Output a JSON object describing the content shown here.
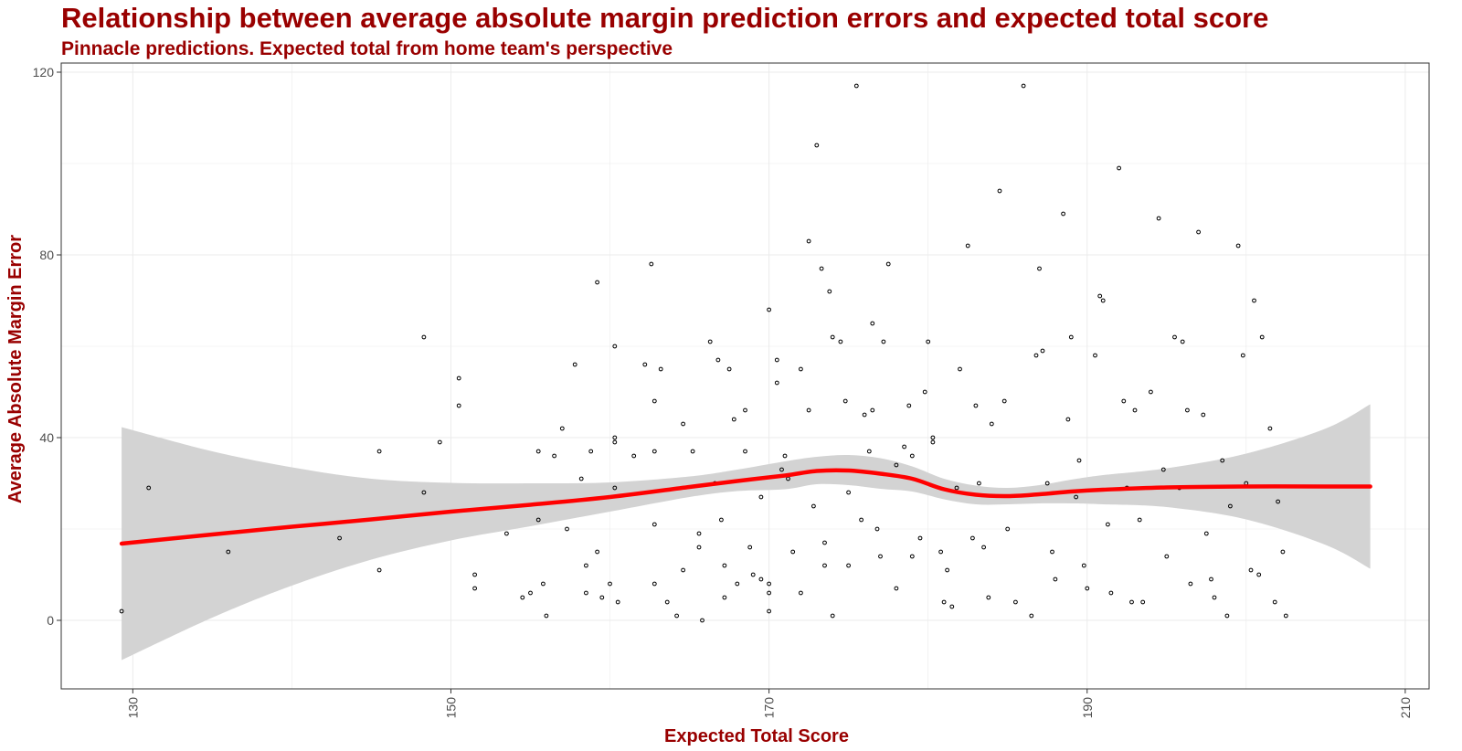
{
  "chart_data": {
    "type": "scatter",
    "title": "Relationship between average absolute margin prediction errors and expected total score",
    "subtitle": "Pinnacle predictions. Expected total from home team's perspective",
    "xlabel": "Expected Total Score",
    "ylabel": "Average Absolute Margin Error",
    "xlim": [
      125.5,
      211.5
    ],
    "ylim": [
      -15,
      122
    ],
    "x_ticks": [
      130,
      150,
      170,
      190,
      210
    ],
    "y_ticks": [
      0,
      40,
      80,
      120
    ],
    "grid": true,
    "colors": {
      "title": "#990000",
      "points": "#000000",
      "smooth": "#ff0000",
      "band": "#d3d3d3",
      "grid": "#ebebeb"
    },
    "smooth": {
      "x": [
        129.3,
        135,
        140,
        145,
        150,
        155,
        160,
        165,
        168,
        171,
        173,
        175,
        177,
        179,
        181,
        183,
        185,
        187,
        189,
        191,
        195,
        200,
        205,
        207.8
      ],
      "y": [
        16.8,
        18.8,
        20.5,
        22.1,
        23.8,
        25.3,
        27.0,
        29.2,
        30.5,
        31.7,
        32.7,
        32.8,
        32.1,
        31.0,
        28.7,
        27.5,
        27.2,
        27.6,
        28.2,
        28.6,
        29.1,
        29.3,
        29.3,
        29.3
      ],
      "upper": [
        42.3,
        37.0,
        33.5,
        31.0,
        30.1,
        30.0,
        30.2,
        31.5,
        33.0,
        34.8,
        35.8,
        36.2,
        35.5,
        33.7,
        31.0,
        29.5,
        29.0,
        29.6,
        30.8,
        31.8,
        33.3,
        36.5,
        42.0,
        47.3
      ],
      "lower": [
        -8.7,
        0.6,
        7.6,
        13.3,
        17.5,
        20.6,
        23.8,
        27.0,
        28.3,
        28.7,
        29.8,
        29.6,
        28.8,
        28.2,
        26.5,
        25.4,
        25.4,
        25.6,
        25.6,
        25.4,
        24.8,
        22.1,
        16.5,
        11.3
      ]
    },
    "points": [
      [
        129.3,
        2
      ],
      [
        131,
        29
      ],
      [
        136,
        15
      ],
      [
        143,
        18
      ],
      [
        145.5,
        37
      ],
      [
        145.5,
        11
      ],
      [
        148.3,
        62
      ],
      [
        148.3,
        28
      ],
      [
        149.3,
        39
      ],
      [
        150.5,
        47
      ],
      [
        150.5,
        53
      ],
      [
        151.5,
        10
      ],
      [
        151.5,
        7
      ],
      [
        153.5,
        19
      ],
      [
        154.5,
        5
      ],
      [
        155,
        6
      ],
      [
        155.5,
        37
      ],
      [
        155.5,
        22
      ],
      [
        155.8,
        8
      ],
      [
        156,
        1
      ],
      [
        156.5,
        36
      ],
      [
        157,
        42
      ],
      [
        157.3,
        20
      ],
      [
        157.8,
        56
      ],
      [
        158.2,
        31
      ],
      [
        158.5,
        12
      ],
      [
        158.5,
        6
      ],
      [
        158.8,
        37
      ],
      [
        159.2,
        74
      ],
      [
        159.2,
        15
      ],
      [
        159.5,
        5
      ],
      [
        160,
        8
      ],
      [
        160.3,
        60
      ],
      [
        160.3,
        40
      ],
      [
        160.3,
        39
      ],
      [
        160.3,
        29
      ],
      [
        160.5,
        4
      ],
      [
        161.5,
        36
      ],
      [
        162.2,
        56
      ],
      [
        162.6,
        78
      ],
      [
        162.8,
        48
      ],
      [
        162.8,
        37
      ],
      [
        162.8,
        21
      ],
      [
        162.8,
        8
      ],
      [
        163.2,
        55
      ],
      [
        163.6,
        4
      ],
      [
        164.2,
        1
      ],
      [
        164.6,
        43
      ],
      [
        164.6,
        11
      ],
      [
        165.2,
        37
      ],
      [
        165.6,
        19
      ],
      [
        165.6,
        16
      ],
      [
        165.8,
        0
      ],
      [
        166.3,
        61
      ],
      [
        166.6,
        30
      ],
      [
        166.8,
        57
      ],
      [
        167,
        22
      ],
      [
        167.2,
        12
      ],
      [
        167.2,
        5
      ],
      [
        167.5,
        55
      ],
      [
        167.8,
        44
      ],
      [
        168,
        8
      ],
      [
        168.5,
        46
      ],
      [
        168.5,
        37
      ],
      [
        168.8,
        16
      ],
      [
        169,
        10
      ],
      [
        169.5,
        27
      ],
      [
        169.5,
        9
      ],
      [
        170,
        68
      ],
      [
        170,
        8
      ],
      [
        170,
        6
      ],
      [
        170,
        2
      ],
      [
        170.5,
        57
      ],
      [
        170.5,
        52
      ],
      [
        170.8,
        33
      ],
      [
        171,
        36
      ],
      [
        171.2,
        31
      ],
      [
        171.5,
        15
      ],
      [
        172,
        55
      ],
      [
        172,
        6
      ],
      [
        172.5,
        83
      ],
      [
        172.5,
        46
      ],
      [
        172.8,
        25
      ],
      [
        173,
        104
      ],
      [
        173.3,
        77
      ],
      [
        173.5,
        17
      ],
      [
        173.5,
        12
      ],
      [
        173.8,
        72
      ],
      [
        174,
        1
      ],
      [
        174,
        62
      ],
      [
        174.5,
        61
      ],
      [
        174.8,
        48
      ],
      [
        175,
        28
      ],
      [
        175,
        12
      ],
      [
        175.5,
        117
      ],
      [
        175.8,
        22
      ],
      [
        176,
        45
      ],
      [
        176.3,
        37
      ],
      [
        176.5,
        65
      ],
      [
        176.5,
        46
      ],
      [
        176.8,
        20
      ],
      [
        177,
        14
      ],
      [
        177.2,
        61
      ],
      [
        177.5,
        78
      ],
      [
        178,
        34
      ],
      [
        178,
        7
      ],
      [
        178.5,
        38
      ],
      [
        178.8,
        47
      ],
      [
        179,
        36
      ],
      [
        179,
        14
      ],
      [
        179.5,
        18
      ],
      [
        179.8,
        50
      ],
      [
        180,
        61
      ],
      [
        180.3,
        40
      ],
      [
        180.3,
        39
      ],
      [
        180.8,
        15
      ],
      [
        181,
        4
      ],
      [
        181.2,
        11
      ],
      [
        181.5,
        3
      ],
      [
        181.8,
        29
      ],
      [
        182,
        55
      ],
      [
        182.5,
        82
      ],
      [
        182.8,
        18
      ],
      [
        183,
        47
      ],
      [
        183.2,
        30
      ],
      [
        183.5,
        16
      ],
      [
        183.8,
        5
      ],
      [
        184,
        43
      ],
      [
        184.5,
        94
      ],
      [
        184.8,
        48
      ],
      [
        185,
        20
      ],
      [
        185.5,
        4
      ],
      [
        186,
        117
      ],
      [
        186.5,
        1
      ],
      [
        186.8,
        58
      ],
      [
        187,
        77
      ],
      [
        187.2,
        59
      ],
      [
        187.5,
        30
      ],
      [
        187.8,
        15
      ],
      [
        188,
        9
      ],
      [
        188.5,
        89
      ],
      [
        188.8,
        44
      ],
      [
        189,
        62
      ],
      [
        189.3,
        27
      ],
      [
        189.5,
        35
      ],
      [
        189.8,
        12
      ],
      [
        190,
        7
      ],
      [
        190.5,
        58
      ],
      [
        190.8,
        71
      ],
      [
        191,
        70
      ],
      [
        191.3,
        21
      ],
      [
        191.5,
        6
      ],
      [
        192,
        99
      ],
      [
        192.3,
        48
      ],
      [
        192.5,
        29
      ],
      [
        192.8,
        4
      ],
      [
        193,
        46
      ],
      [
        193.3,
        22
      ],
      [
        193.5,
        4
      ],
      [
        194,
        50
      ],
      [
        194.5,
        88
      ],
      [
        194.8,
        33
      ],
      [
        195,
        14
      ],
      [
        195.5,
        62
      ],
      [
        195.8,
        29
      ],
      [
        196,
        61
      ],
      [
        196.3,
        46
      ],
      [
        196.5,
        8
      ],
      [
        197,
        85
      ],
      [
        197.3,
        45
      ],
      [
        197.5,
        19
      ],
      [
        197.8,
        9
      ],
      [
        198,
        5
      ],
      [
        198.5,
        35
      ],
      [
        198.8,
        1
      ],
      [
        199,
        25
      ],
      [
        199.5,
        82
      ],
      [
        199.8,
        58
      ],
      [
        200,
        30
      ],
      [
        200.3,
        11
      ],
      [
        200.5,
        70
      ],
      [
        200.8,
        10
      ],
      [
        201,
        62
      ],
      [
        201.5,
        42
      ],
      [
        201.8,
        4
      ],
      [
        202,
        26
      ],
      [
        202.3,
        15
      ],
      [
        202.5,
        1
      ]
    ]
  }
}
